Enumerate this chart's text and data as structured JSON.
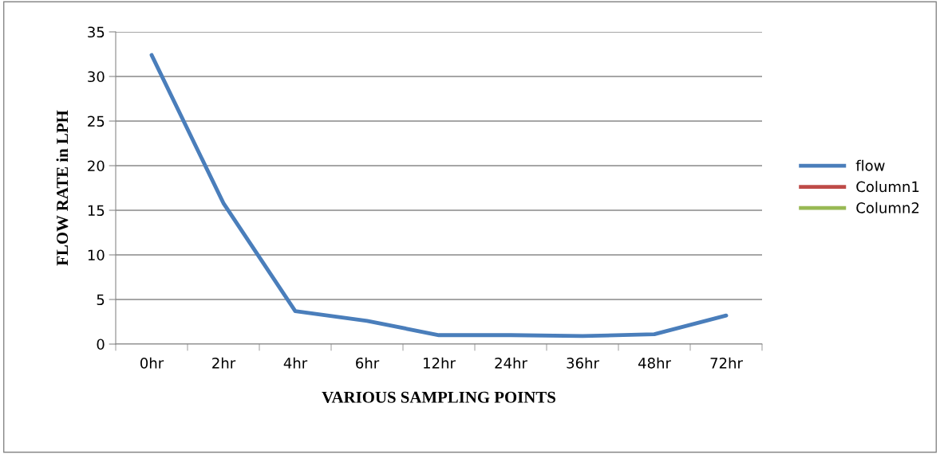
{
  "chart_data": {
    "type": "line",
    "xlabel": "VARIOUS SAMPLING POINTS",
    "ylabel": "FLOW RATE in LPH",
    "categories": [
      "0hr",
      "2hr",
      "4hr",
      "6hr",
      "12hr",
      "24hr",
      "36hr",
      "48hr",
      "72hr"
    ],
    "series": [
      {
        "name": "flow",
        "color": "#4a7ebb",
        "values": [
          32.4,
          15.8,
          3.7,
          2.6,
          1.0,
          1.0,
          0.9,
          1.1,
          3.2
        ]
      },
      {
        "name": "Column1",
        "color": "#be4b48",
        "values": [
          null,
          null,
          null,
          null,
          null,
          null,
          null,
          null,
          null
        ]
      },
      {
        "name": "Column2",
        "color": "#98b954",
        "values": [
          null,
          null,
          null,
          null,
          null,
          null,
          null,
          null,
          null
        ]
      }
    ],
    "ylim": [
      0,
      35
    ],
    "yticks": [
      0,
      5,
      10,
      15,
      20,
      25,
      30,
      35
    ],
    "grid": "y",
    "legend": "right",
    "marker": "none",
    "line_style": "solid"
  }
}
